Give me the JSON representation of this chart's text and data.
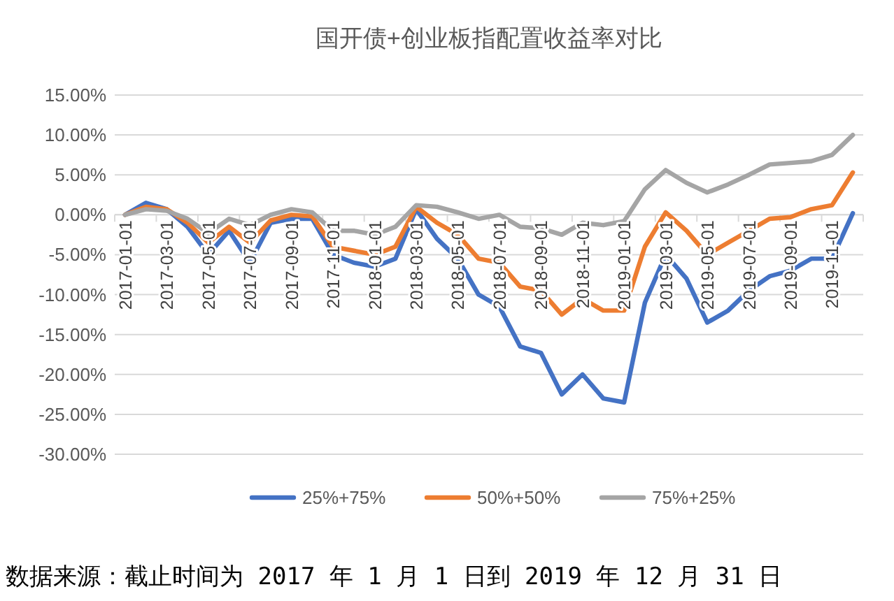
{
  "chart_data": {
    "type": "line",
    "title": "国开债+创业板指配置收益率对比",
    "categories": [
      "2017-01-01",
      null,
      "2017-03-01",
      null,
      "2017-05-01",
      null,
      "2017-07-01",
      null,
      "2017-09-01",
      null,
      "2017-11-01",
      null,
      "2018-01-01",
      null,
      "2018-03-01",
      null,
      "2018-05-01",
      null,
      "2018-07-01",
      null,
      "2018-09-01",
      null,
      "2018-11-01",
      null,
      "2019-01-01",
      null,
      "2019-03-01",
      null,
      "2019-05-01",
      null,
      "2019-07-01",
      null,
      "2019-09-01",
      null,
      "2019-11-01",
      null
    ],
    "series": [
      {
        "name": "25%+75%",
        "color": "#4472c4",
        "values": [
          0,
          1.5,
          0.7,
          -1.5,
          -5,
          -2,
          -6,
          -1,
          -0.5,
          -0.5,
          -5,
          -6,
          -6.5,
          -5.5,
          0.7,
          -3,
          -5.5,
          -10,
          -11.5,
          -16.5,
          -17.3,
          -22.5,
          -20,
          -23,
          -23.5,
          -11,
          -5,
          -8,
          -13.5,
          -12,
          -9.5,
          -7.7,
          -7,
          -5.5,
          -5.5,
          0.2
        ]
      },
      {
        "name": "50%+50%",
        "color": "#ed7d31",
        "values": [
          0,
          1,
          0.7,
          -1,
          -3.5,
          -1.5,
          -3.5,
          -0.7,
          0,
          -0.2,
          -4,
          -4.5,
          -5,
          -4,
          1,
          -1,
          -2.5,
          -5.5,
          -6,
          -9,
          -9.5,
          -12.5,
          -10.5,
          -12,
          -12,
          -4,
          0.3,
          -2,
          -5,
          -3.5,
          -2,
          -0.5,
          -0.3,
          0.7,
          1.2,
          5.3
        ]
      },
      {
        "name": "75%+25%",
        "color": "#a5a5a5",
        "values": [
          0,
          0.7,
          0.5,
          -0.5,
          -2.3,
          -0.5,
          -1.3,
          0,
          0.7,
          0.3,
          -2,
          -2,
          -2.5,
          -1.5,
          1.2,
          1,
          0.3,
          -0.5,
          0,
          -1.5,
          -1.7,
          -2.5,
          -1,
          -1.3,
          -0.8,
          3.2,
          5.6,
          4,
          2.8,
          3.8,
          5,
          6.3,
          6.5,
          6.7,
          7.5,
          10
        ]
      }
    ],
    "ylim": [
      -30,
      15
    ],
    "yticks": [
      {
        "value": -30,
        "label": "-30.00%"
      },
      {
        "value": -25,
        "label": "-25.00%"
      },
      {
        "value": -20,
        "label": "-20.00%"
      },
      {
        "value": -15,
        "label": "-15.00%"
      },
      {
        "value": -10,
        "label": "-10.00%"
      },
      {
        "value": -5,
        "label": "-5.00%"
      },
      {
        "value": 0,
        "label": "0.00%"
      },
      {
        "value": 5,
        "label": "5.00%"
      },
      {
        "value": 10,
        "label": "10.00%"
      },
      {
        "value": 15,
        "label": "15.00%"
      }
    ],
    "grid": "y",
    "legend": "bottom",
    "marker": "none",
    "line_style": "solid",
    "annotations": [
      "数据来源：截止时间为 2017 年 1 月 1 日到 2019 年 12 月 31 日"
    ]
  }
}
